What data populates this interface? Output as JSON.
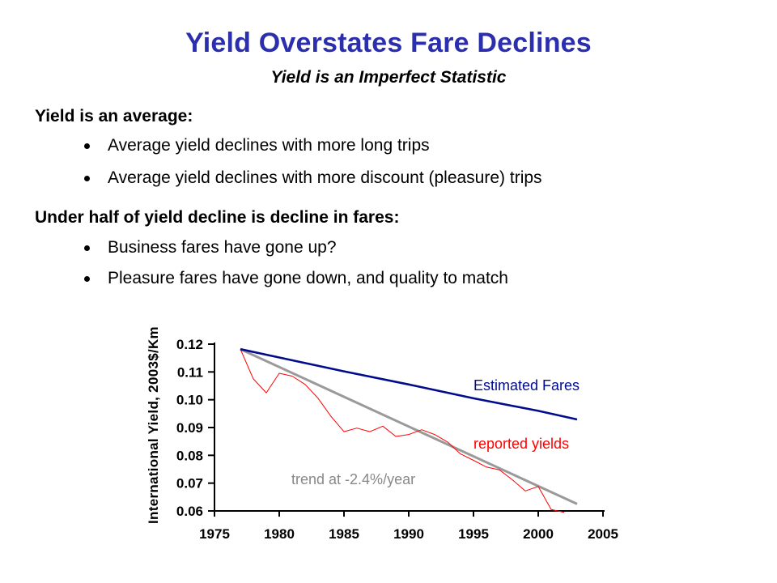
{
  "title": "Yield Overstates Fare Declines",
  "subtitle": "Yield is an Imperfect Statistic",
  "sections": [
    {
      "heading": "Yield is an average:",
      "bullets": [
        "Average yield declines with more long trips",
        "Average yield declines with more discount (pleasure) trips"
      ]
    },
    {
      "heading": "Under half of yield decline is decline in fares:",
      "bullets": [
        "Business fares have gone up?",
        "Pleasure fares have gone down, and quality to match"
      ]
    }
  ],
  "chart_data": {
    "type": "line",
    "ylabel": "International Yield, 2003$/Km",
    "xlabel": "",
    "xlim": [
      1975,
      2005
    ],
    "ylim": [
      0.06,
      0.12
    ],
    "x_ticks": [
      1975,
      1980,
      1985,
      1990,
      1995,
      2000,
      2005
    ],
    "y_ticks": [
      0.06,
      0.07,
      0.08,
      0.09,
      0.1,
      0.11,
      0.12
    ],
    "x_tick_labels": [
      "1975",
      "1980",
      "1985",
      "1990",
      "1995",
      "2000",
      "2005"
    ],
    "y_tick_labels": [
      "0.06",
      "0.07",
      "0.08",
      "0.09",
      "0.10",
      "0.11",
      "0.12"
    ],
    "grid": false,
    "series": [
      {
        "name": "Estimated Fares",
        "color": "#000c8c",
        "x": [
          1977,
          1980,
          1985,
          1990,
          1995,
          2000,
          2003
        ],
        "values": [
          0.1182,
          0.1152,
          0.1102,
          0.1055,
          0.1005,
          0.096,
          0.0929
        ]
      },
      {
        "name": "reported yields",
        "color": "#ff0000",
        "x": [
          1977,
          1978,
          1979,
          1980,
          1981,
          1982,
          1983,
          1984,
          1985,
          1986,
          1987,
          1988,
          1989,
          1990,
          1991,
          1992,
          1993,
          1994,
          1995,
          1996,
          1997,
          1998,
          1999,
          2000,
          2001,
          2002
        ],
        "values": [
          0.1182,
          0.1075,
          0.1025,
          0.1095,
          0.1085,
          0.1055,
          0.1005,
          0.094,
          0.0885,
          0.0898,
          0.0885,
          0.0905,
          0.0868,
          0.0875,
          0.0892,
          0.0875,
          0.0848,
          0.0805,
          0.0782,
          0.0758,
          0.0748,
          0.0712,
          0.0672,
          0.0688,
          0.0605,
          0.0595
        ]
      },
      {
        "name": "trend at -2.4%/year",
        "color": "#9a9a9a",
        "x": [
          1977,
          2003
        ],
        "values": [
          0.1182,
          0.0625
        ]
      }
    ]
  }
}
